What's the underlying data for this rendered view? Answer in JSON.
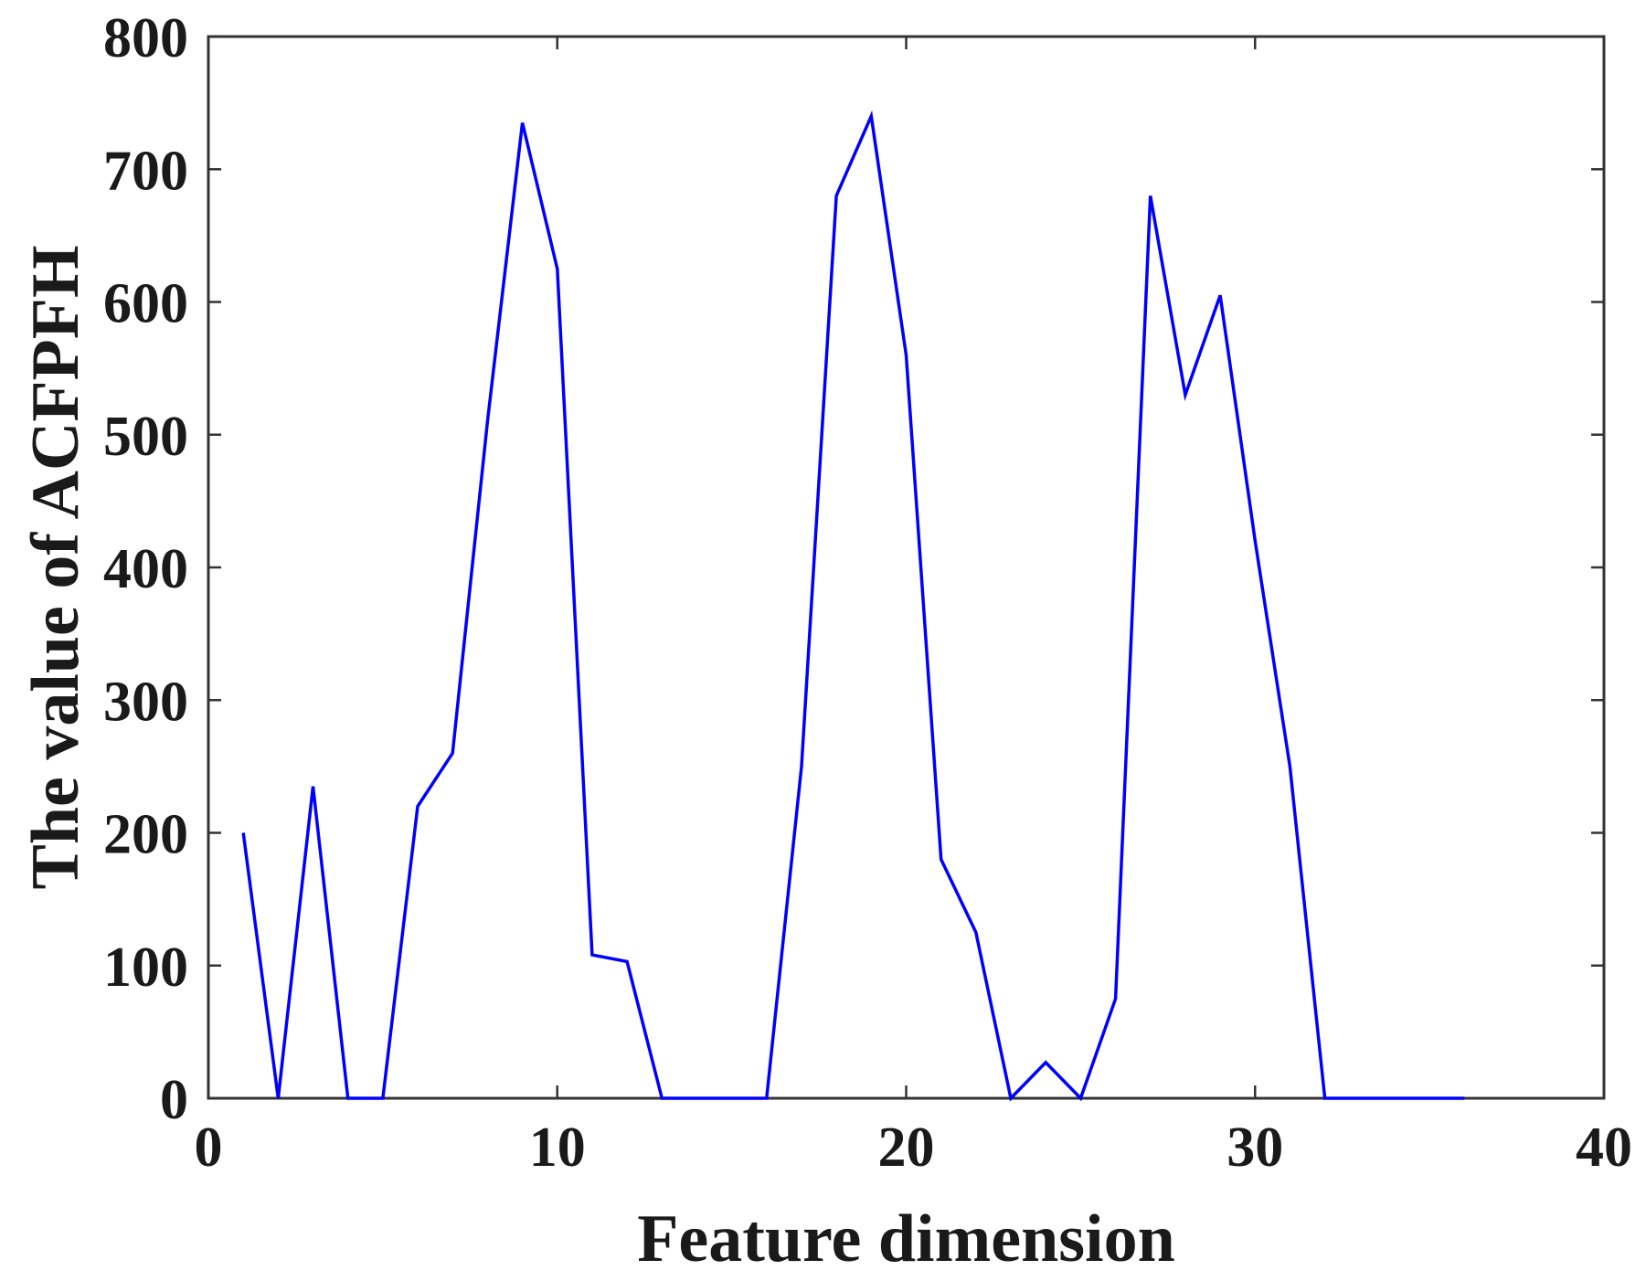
{
  "chart_data": {
    "type": "line",
    "title": "",
    "xlabel": "Feature dimension",
    "ylabel": "The value of ACFPFH",
    "xlim": [
      0,
      40
    ],
    "ylim": [
      0,
      800
    ],
    "xticks": [
      0,
      10,
      20,
      30,
      40
    ],
    "yticks": [
      0,
      100,
      200,
      300,
      400,
      500,
      600,
      700,
      800
    ],
    "grid": false,
    "legend": "none",
    "colors": {
      "line": "#0000ff",
      "axes": "#333333",
      "background": "#ffffff"
    },
    "series": [
      {
        "x": [
          1,
          2,
          3,
          4,
          5,
          6,
          7,
          8,
          9,
          10,
          11,
          12,
          13,
          14,
          15,
          16,
          17,
          18,
          19,
          20,
          21,
          22,
          23,
          24,
          25,
          26,
          27,
          28,
          29,
          30,
          31,
          32,
          33,
          34,
          35,
          36
        ],
        "values": [
          200,
          0,
          235,
          0,
          0,
          220,
          260,
          510,
          735,
          625,
          108,
          103,
          0,
          0,
          0,
          0,
          250,
          680,
          740,
          560,
          180,
          125,
          0,
          27,
          0,
          75,
          680,
          530,
          605,
          420,
          250,
          0,
          0,
          0,
          0,
          0
        ]
      }
    ]
  }
}
